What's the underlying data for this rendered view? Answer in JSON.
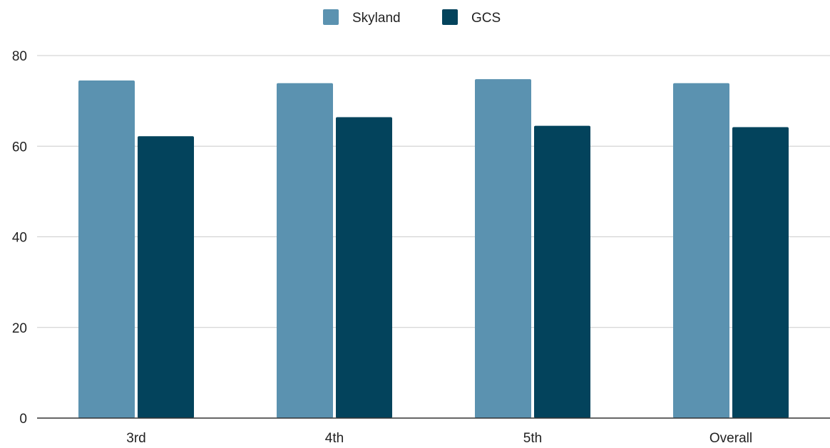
{
  "chart_data": {
    "type": "bar",
    "title": "",
    "xlabel": "",
    "ylabel": "",
    "categories": [
      "3rd",
      "4th",
      "5th",
      "Overall"
    ],
    "series": [
      {
        "name": "Skyland",
        "color": "#5b92b0",
        "values": [
          74.5,
          73.9,
          74.8,
          73.9
        ]
      },
      {
        "name": "GCS",
        "color": "#03435c",
        "values": [
          62.2,
          66.4,
          64.5,
          64.2
        ]
      }
    ],
    "yticks": [
      0,
      20,
      40,
      60,
      80
    ],
    "ylim": [
      0,
      80
    ],
    "grid": true,
    "legend": "top-center"
  }
}
